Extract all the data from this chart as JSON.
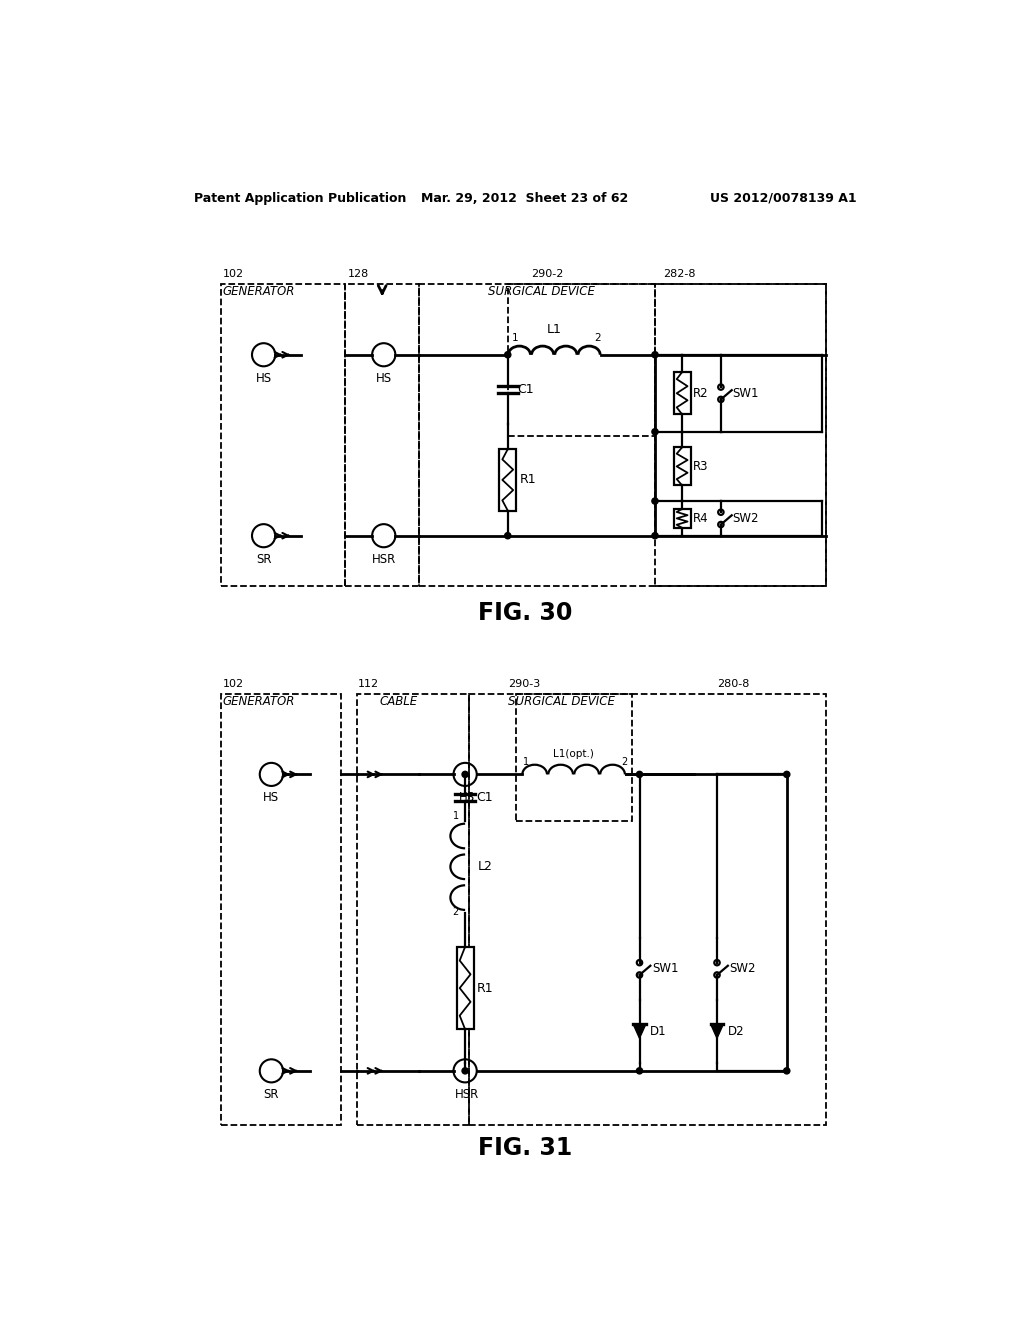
{
  "bg_color": "#ffffff",
  "header_left": "Patent Application Publication",
  "header_mid": "Mar. 29, 2012  Sheet 23 of 62",
  "header_right": "US 2012/0078139 A1",
  "fig30_label": "FIG. 30",
  "fig31_label": "FIG. 31"
}
